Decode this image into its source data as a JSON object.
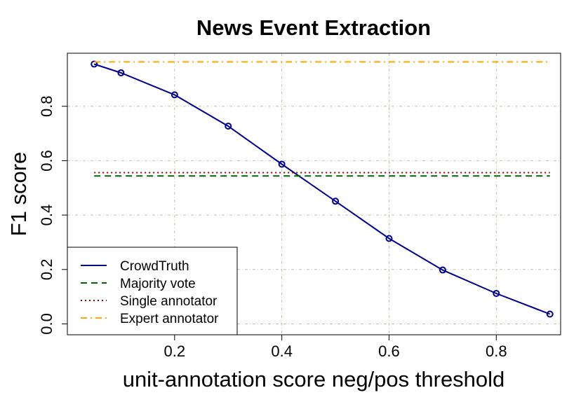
{
  "chart_data": {
    "type": "line",
    "title": "News Event Extraction",
    "xlabel": "unit-annotation score neg/pos threshold",
    "ylabel": "F1 score",
    "xlim": [
      0.0,
      0.92
    ],
    "ylim": [
      -0.04,
      0.995
    ],
    "x_ticks": [
      0.2,
      0.4,
      0.6,
      0.8
    ],
    "x_tick_labels": [
      "0.2",
      "0.4",
      "0.6",
      "0.8"
    ],
    "y_ticks": [
      0.0,
      0.2,
      0.4,
      0.6,
      0.8
    ],
    "y_tick_labels": [
      "0.0",
      "0.2",
      "0.4",
      "0.6",
      "0.8"
    ],
    "grid": true,
    "legend_position": "bottom-left",
    "series": [
      {
        "name": "CrowdTruth",
        "style": "solid",
        "markers": true,
        "color": "#00008b",
        "x": [
          0.05,
          0.1,
          0.2,
          0.3,
          0.4,
          0.5,
          0.6,
          0.7,
          0.8,
          0.9
        ],
        "values": [
          0.955,
          0.923,
          0.842,
          0.727,
          0.587,
          0.451,
          0.314,
          0.198,
          0.112,
          0.036
        ]
      },
      {
        "name": "Majority vote",
        "style": "dashed",
        "markers": false,
        "color": "#006400",
        "x": [
          0.05,
          0.9
        ],
        "values": [
          0.544,
          0.544
        ]
      },
      {
        "name": "Single annotator",
        "style": "dotted",
        "markers": false,
        "color": "#8b0000",
        "x": [
          0.05,
          0.9
        ],
        "values": [
          0.556,
          0.556
        ]
      },
      {
        "name": "Expert annotator",
        "style": "dashdot",
        "markers": false,
        "color": "#ffa500",
        "x": [
          0.05,
          0.9
        ],
        "values": [
          0.963,
          0.963
        ]
      }
    ]
  }
}
